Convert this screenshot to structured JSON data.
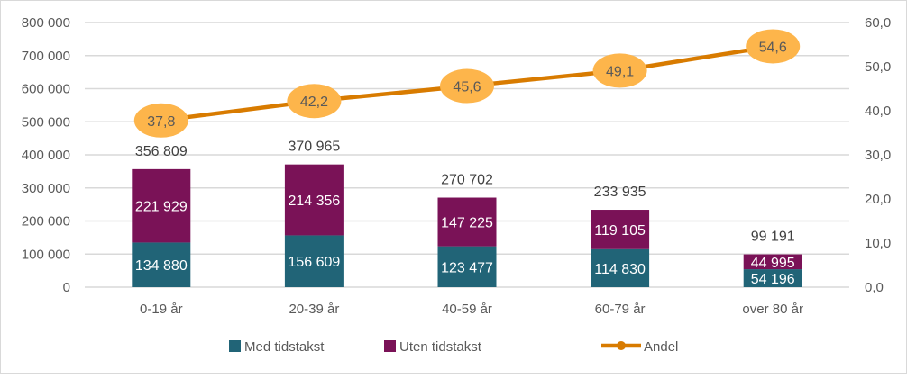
{
  "chart_data": {
    "type": "bar",
    "stacked": true,
    "categories": [
      "0-19 år",
      "20-39 år",
      "40-59 år",
      "60-79 år",
      "over 80 år"
    ],
    "series": [
      {
        "name": "Med tidstakst",
        "type": "bar",
        "axis": "left",
        "color": "#216477",
        "values": [
          134880,
          156609,
          123477,
          114830,
          54196
        ],
        "labels": [
          "134 880",
          "156 609",
          "123 477",
          "114 830",
          "54 196"
        ]
      },
      {
        "name": "Uten tidstakst",
        "type": "bar",
        "axis": "left",
        "color": "#7A1257",
        "values": [
          221929,
          214356,
          147225,
          119105,
          44995
        ],
        "labels": [
          "221 929",
          "214 356",
          "147 225",
          "119 105",
          "44 995"
        ]
      },
      {
        "name": "Andel",
        "type": "line",
        "axis": "right",
        "color": "#D87B00",
        "marker_color": "#FDB54B",
        "values": [
          37.8,
          42.2,
          45.6,
          49.1,
          54.6
        ],
        "labels": [
          "37,8",
          "42,2",
          "45,6",
          "49,1",
          "54,6"
        ]
      }
    ],
    "totals": {
      "values": [
        356809,
        370965,
        270702,
        233935,
        99191
      ],
      "labels": [
        "356 809",
        "370 965",
        "270 702",
        "233 935",
        "99 191"
      ]
    },
    "y_left": {
      "range": [
        0,
        800000
      ],
      "ticks": [
        "0",
        "100 000",
        "200 000",
        "300 000",
        "400 000",
        "500 000",
        "600 000",
        "700 000",
        "800 000"
      ]
    },
    "y_right": {
      "range": [
        0,
        60
      ],
      "ticks": [
        "0,0",
        "10,0",
        "20,0",
        "30,0",
        "40,0",
        "50,0",
        "60,0"
      ]
    },
    "grid": true,
    "legend_position": "bottom"
  }
}
